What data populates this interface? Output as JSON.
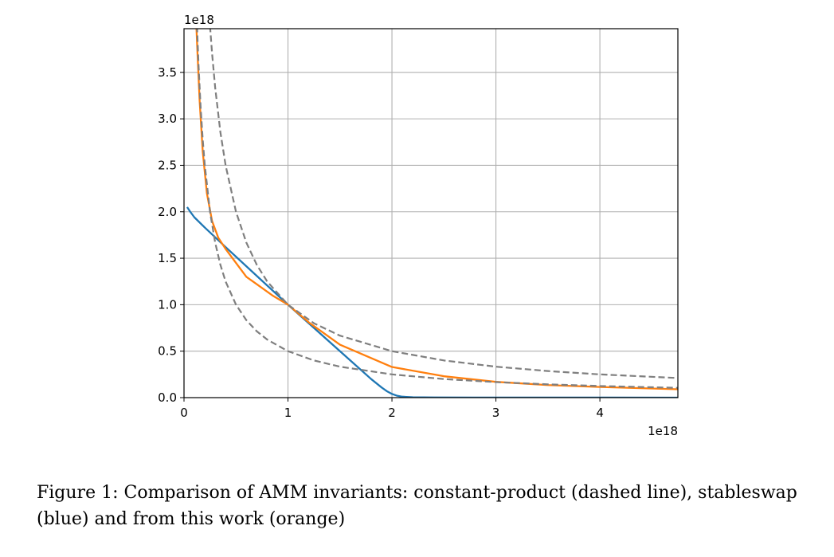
{
  "caption": "Figure 1: Comparison of AMM invariants: constant-product (dashed line), stableswap (blue) and from this work (orange)",
  "chart_data": {
    "type": "line",
    "title": "",
    "xlabel": "",
    "ylabel": "",
    "x_offset_label": "1e18",
    "y_offset_label": "1e18",
    "xlim": [
      0,
      4.75
    ],
    "ylim": [
      0,
      3.97
    ],
    "x_ticks": [
      0,
      1,
      2,
      3,
      4
    ],
    "x_tick_labels": [
      "0",
      "1",
      "2",
      "3",
      "4"
    ],
    "y_ticks": [
      0,
      0.5,
      1.0,
      1.5,
      2.0,
      2.5,
      3.0,
      3.5
    ],
    "y_tick_labels": [
      "0.0",
      "0.5",
      "1.0",
      "1.5",
      "2.0",
      "2.5",
      "3.0",
      "3.5"
    ],
    "grid": true,
    "legend": "none",
    "series": [
      {
        "color": "#1f77b4",
        "dash": "solid",
        "x": [
          0.03,
          0.06,
          0.1,
          0.2,
          0.4,
          0.7,
          1.0,
          1.3,
          1.6,
          1.8,
          1.9,
          1.95,
          2.0,
          2.05,
          2.1,
          2.2,
          2.4,
          2.8,
          3.5,
          4.75
        ],
        "y": [
          2.05,
          2.0,
          1.94,
          1.83,
          1.62,
          1.31,
          1.0,
          0.7,
          0.4,
          0.2,
          0.11,
          0.07,
          0.04,
          0.02,
          0.01,
          0.004,
          0.002,
          0.001,
          0.0005,
          0.0002
        ]
      },
      {
        "color": "#ff7f0e",
        "dash": "solid",
        "x": [
          0.12,
          0.13,
          0.15,
          0.18,
          0.22,
          0.27,
          0.33,
          0.4,
          0.5,
          0.6,
          0.7,
          0.85,
          1.0,
          1.2,
          1.5,
          2.0,
          2.5,
          3.0,
          3.5,
          4.0,
          4.75
        ],
        "y": [
          3.97,
          3.7,
          3.2,
          2.65,
          2.2,
          1.9,
          1.72,
          1.6,
          1.45,
          1.3,
          1.22,
          1.1,
          1.0,
          0.81,
          0.57,
          0.33,
          0.23,
          0.17,
          0.135,
          0.115,
          0.09
        ]
      },
      {
        "color": "#7f7f7f",
        "dash": "dashed",
        "x": [
          0.125,
          0.14,
          0.16,
          0.18,
          0.2,
          0.25,
          0.3,
          0.35,
          0.4,
          0.5,
          0.6,
          0.7,
          0.8,
          1.0,
          1.25,
          1.5,
          2.0,
          2.5,
          3.0,
          3.5,
          4.0,
          4.75
        ],
        "y": [
          4.0,
          3.571,
          3.125,
          2.778,
          2.5,
          2.0,
          1.667,
          1.429,
          1.25,
          1.0,
          0.833,
          0.714,
          0.625,
          0.5,
          0.4,
          0.333,
          0.25,
          0.2,
          0.167,
          0.143,
          0.125,
          0.105
        ]
      },
      {
        "color": "#7f7f7f",
        "dash": "dashed",
        "x": [
          0.25,
          0.27,
          0.3,
          0.35,
          0.4,
          0.5,
          0.6,
          0.7,
          0.8,
          1.0,
          1.25,
          1.5,
          2.0,
          2.5,
          3.0,
          3.5,
          4.0,
          4.75
        ],
        "y": [
          4.0,
          3.704,
          3.333,
          2.857,
          2.5,
          2.0,
          1.667,
          1.429,
          1.25,
          1.0,
          0.8,
          0.667,
          0.5,
          0.4,
          0.333,
          0.286,
          0.25,
          0.211
        ]
      }
    ]
  }
}
